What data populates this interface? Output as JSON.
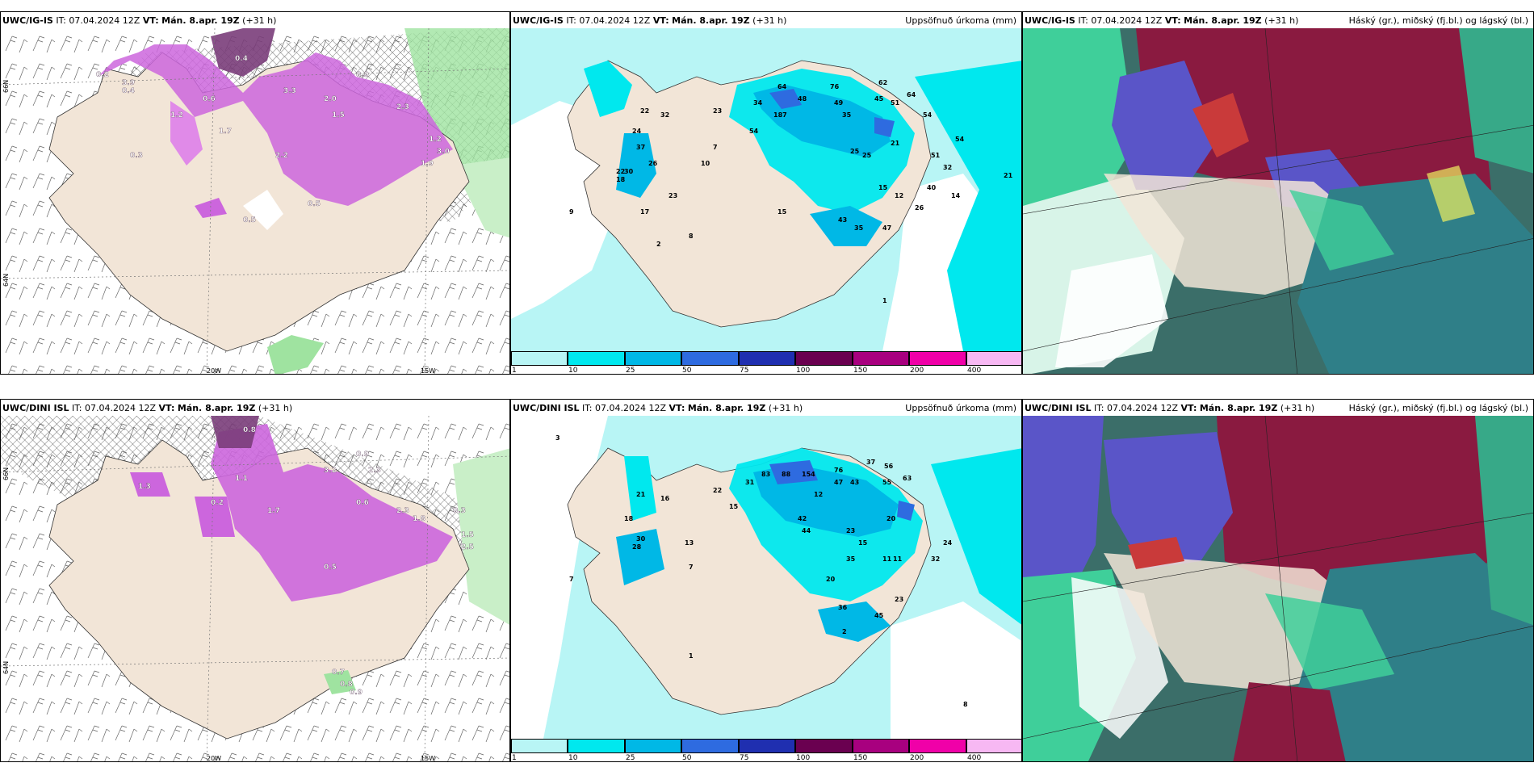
{
  "panels": [
    {
      "id": "top-left",
      "model": "UWC/IG-IS",
      "it_label": "IT:",
      "it": "07.04.2024 12Z",
      "vt_label": "VT:",
      "vt": "Mán. 8.apr. 19Z",
      "lead": "(+31 h)",
      "right_title": ""
    },
    {
      "id": "top-mid",
      "model": "UWC/IG-IS",
      "it_label": "IT:",
      "it": "07.04.2024 12Z",
      "vt_label": "VT:",
      "vt": "Mán. 8.apr. 19Z",
      "lead": "(+31 h)",
      "right_title": "Uppsöfnuð úrkoma (mm)"
    },
    {
      "id": "top-right",
      "model": "UWC/IG-IS",
      "it_label": "IT:",
      "it": "07.04.2024 12Z",
      "vt_label": "VT:",
      "vt": "Mán. 8.apr. 19Z",
      "lead": "(+31 h)",
      "right_title": "Háský (gr.), miðský (fj.bl.) og lágský (bl.)"
    },
    {
      "id": "bot-left",
      "model": "UWC/DINI ISL",
      "it_label": "IT:",
      "it": "07.04.2024 12Z",
      "vt_label": "VT:",
      "vt": "Mán. 8.apr. 19Z",
      "lead": "(+31 h)",
      "right_title": ""
    },
    {
      "id": "bot-mid",
      "model": "UWC/DINI ISL",
      "it_label": "IT:",
      "it": "07.04.2024 12Z",
      "vt_label": "VT:",
      "vt": "Mán. 8.apr. 19Z",
      "lead": "(+31 h)",
      "right_title": "Uppsöfnuð úrkoma (mm)"
    },
    {
      "id": "bot-right",
      "model": "UWC/DINI ISL",
      "it_label": "IT:",
      "it": "07.04.2024 12Z",
      "vt_label": "VT:",
      "vt": "Mán. 8.apr. 19Z",
      "lead": "(+31 h)",
      "right_title": "Háský (gr.), miðský (fj.bl.) og lágský (bl.)"
    }
  ],
  "axis_labels": {
    "lon_20w": "20W",
    "lon_15w": "15W",
    "lat_66n": "66N",
    "lat_64n": "64N",
    "lat_65n": "65N",
    "lat_63n": "63N"
  },
  "precip_legend": {
    "labels": [
      "1",
      "10",
      "25",
      "50",
      "75",
      "100",
      "150",
      "200",
      "400"
    ],
    "colors": [
      "#b8f5f5",
      "#00e8ee",
      "#00b8e6",
      "#2e6be0",
      "#1f2fb0",
      "#6a0050",
      "#a8007f",
      "#f000a8",
      "#f7b8f3"
    ]
  },
  "precip_values_top": [
    "64",
    "48",
    "49",
    "76",
    "62",
    "45",
    "51",
    "64",
    "54",
    "54",
    "35",
    "34",
    "187",
    "23",
    "22",
    "32",
    "21",
    "25",
    "26",
    "37",
    "30",
    "24",
    "22",
    "18",
    "17",
    "23",
    "8",
    "9",
    "7",
    "10",
    "15",
    "43",
    "35",
    "47",
    "25",
    "12",
    "15",
    "40",
    "14",
    "26",
    "21",
    "2",
    "1",
    "54",
    "51",
    "32"
  ],
  "precip_values_bot": [
    "83",
    "88",
    "154",
    "76",
    "37",
    "56",
    "55",
    "63",
    "47",
    "43",
    "31",
    "22",
    "15",
    "20",
    "23",
    "15",
    "18",
    "28",
    "30",
    "42",
    "44",
    "35",
    "20",
    "45",
    "23",
    "36",
    "21",
    "16",
    "13",
    "7",
    "7",
    "12",
    "11",
    "11",
    "32",
    "24",
    "8",
    "2",
    "1",
    "3"
  ],
  "sleet_values_top": [
    "0.2",
    "0.4",
    "1.2",
    "3.3",
    "2.0",
    "0.9",
    "1.5",
    "2.3",
    "1.2",
    "3.0",
    "1.9",
    "0.5",
    "0.3",
    "0.6",
    "1.7",
    "2.2",
    "3.9",
    "0.5",
    "0.4"
  ],
  "sleet_values_bot": [
    "0.8",
    "3.2",
    "0.9",
    "2.3",
    "1.1",
    "1.7",
    "0.6",
    "1.8",
    "2.3",
    "0.2",
    "0.5",
    "0.7",
    "0.8",
    "0.9",
    "0.3",
    "1.5",
    "1.3",
    "2.5"
  ]
}
